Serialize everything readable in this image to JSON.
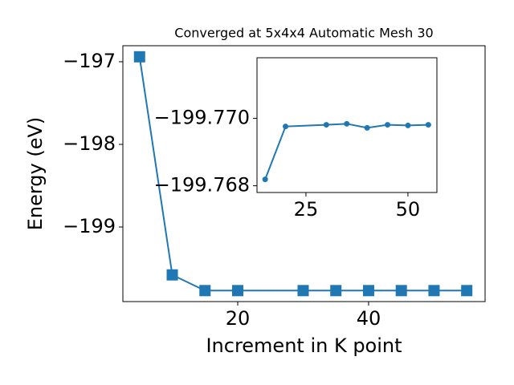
{
  "chart_data": [
    {
      "type": "line",
      "title": "Converged at 5x4x4 Automatic Mesh 30",
      "x_label": "Increment in K point",
      "y_label": "Energy (eV)",
      "x": [
        5,
        10,
        15,
        20,
        30,
        35,
        40,
        45,
        50,
        55
      ],
      "series": [
        {
          "color": "#1f77b4",
          "marker": "square",
          "values": [
            -196.94,
            -199.58,
            -199.77,
            -199.77,
            -199.77,
            -199.77,
            -199.77,
            -199.77,
            -199.77,
            -199.77
          ]
        }
      ],
      "xlim": [
        2.45,
        57.8
      ],
      "ylim": [
        -199.903,
        -196.806
      ],
      "xticks": [
        20,
        40
      ],
      "yticks": [
        {
          "value": -197,
          "label": "−197"
        },
        {
          "value": -198,
          "label": "−198"
        },
        {
          "value": -199,
          "label": "−199"
        }
      ]
    },
    {
      "type": "line",
      "x": [
        15,
        20,
        30,
        35,
        40,
        45,
        50,
        55
      ],
      "series": [
        {
          "color": "#1f77b4",
          "marker": "circle",
          "values": [
            -199.76819,
            -199.76976,
            -199.76981,
            -199.76984,
            -199.76972,
            -199.76981,
            -199.76979,
            -199.76981
          ]
        }
      ],
      "xlim": [
        13,
        57.1
      ],
      "ylim": [
        -199.7678,
        -199.7718
      ],
      "xticks": [
        25,
        50
      ],
      "yticks": [
        {
          "value": -199.77,
          "label": "−199.770"
        },
        {
          "value": -199.768,
          "label": "−199.768"
        }
      ]
    }
  ]
}
